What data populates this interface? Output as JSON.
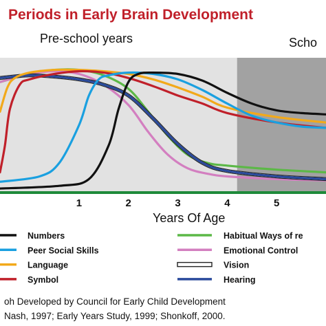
{
  "chart_data": {
    "type": "line",
    "title": "Periods in Early Brain Development",
    "regions": [
      "Pre-school years",
      "Scho"
    ],
    "xlabel": "Years Of Age",
    "x_ticks": [
      "1",
      "2",
      "3",
      "4",
      "5"
    ],
    "xlim": [
      -0.6,
      6.0
    ],
    "ylim": [
      0,
      100
    ],
    "shaded_from": 4.2,
    "grid": false,
    "legend_position": "bottom",
    "series": [
      {
        "name": "Numbers",
        "color": "#111111",
        "x": [
          -0.6,
          0.6,
          1.2,
          1.6,
          1.8,
          2.0,
          2.2,
          2.5,
          3.0,
          3.5,
          4.0,
          4.5,
          5.0,
          5.5,
          6.0
        ],
        "y": [
          3,
          5,
          10,
          35,
          62,
          82,
          88,
          89,
          88,
          83,
          74,
          66,
          61,
          59,
          58
        ]
      },
      {
        "name": "Peer Social Skills",
        "color": "#1aa0e0",
        "x": [
          -0.6,
          0.2,
          0.6,
          1.0,
          1.2,
          1.4,
          1.6,
          2.0,
          2.5,
          3.0,
          3.5,
          4.0,
          4.5,
          5.0,
          5.5,
          6.0
        ],
        "y": [
          8,
          12,
          22,
          50,
          72,
          84,
          87,
          89,
          88,
          84,
          76,
          66,
          57,
          52,
          49,
          48
        ]
      },
      {
        "name": "Language",
        "color": "#f2a91a",
        "x": [
          -0.6,
          -0.45,
          -0.3,
          0.0,
          0.5,
          1.0,
          1.5,
          2.0,
          2.5,
          3.0,
          3.5,
          4.0,
          5.0,
          6.0
        ],
        "y": [
          60,
          78,
          85,
          89,
          91,
          91,
          90,
          88,
          84,
          78,
          71,
          63,
          56,
          52
        ]
      },
      {
        "name": "Symbol",
        "color": "#c0202a",
        "x": [
          -0.6,
          -0.5,
          -0.4,
          -0.2,
          0.0,
          0.5,
          1.0,
          1.5,
          2.0,
          2.5,
          3.0,
          3.5,
          4.0,
          5.0,
          6.0
        ],
        "y": [
          15,
          35,
          62,
          80,
          84,
          88,
          90,
          89,
          85,
          79,
          72,
          66,
          59,
          52,
          48
        ]
      },
      {
        "name": "Habitual Ways of re",
        "color": "#5cb847",
        "x": [
          -0.6,
          0.0,
          0.5,
          1.0,
          1.5,
          2.0,
          2.4,
          2.8,
          3.2,
          3.6,
          4.0,
          5.0,
          6.0
        ],
        "y": [
          82,
          88,
          91,
          91,
          87,
          77,
          60,
          42,
          28,
          22,
          20,
          17,
          15
        ]
      },
      {
        "name": "Emotional Control",
        "color": "#d37fc0",
        "x": [
          -0.6,
          0.0,
          0.5,
          1.0,
          1.5,
          2.0,
          2.4,
          2.8,
          3.2,
          3.6,
          4.0,
          5.0,
          6.0
        ],
        "y": [
          82,
          88,
          90,
          88,
          80,
          65,
          45,
          28,
          18,
          14,
          12,
          10,
          9
        ]
      },
      {
        "name": "Vision",
        "color": "#ffffff",
        "x": [
          -0.6,
          0.0,
          0.5,
          1.0,
          1.5,
          2.0,
          2.5,
          3.0,
          3.5,
          4.0,
          5.0,
          6.0
        ],
        "y": [
          85,
          87,
          86,
          84,
          80,
          72,
          55,
          36,
          22,
          16,
          12,
          10
        ]
      },
      {
        "name": "Hearing",
        "color": "#2a4a9c",
        "x": [
          -0.6,
          0.0,
          0.5,
          1.0,
          1.5,
          2.0,
          2.5,
          3.0,
          3.5,
          4.0,
          5.0,
          6.0
        ],
        "y": [
          85,
          87,
          86,
          84,
          80,
          72,
          55,
          36,
          22,
          16,
          12,
          10
        ]
      }
    ]
  },
  "source_lines": [
    "oh Developed by Council for Early Child Development",
    "Nash, 1997; Early Years Study, 1999; Shonkoff, 2000."
  ]
}
